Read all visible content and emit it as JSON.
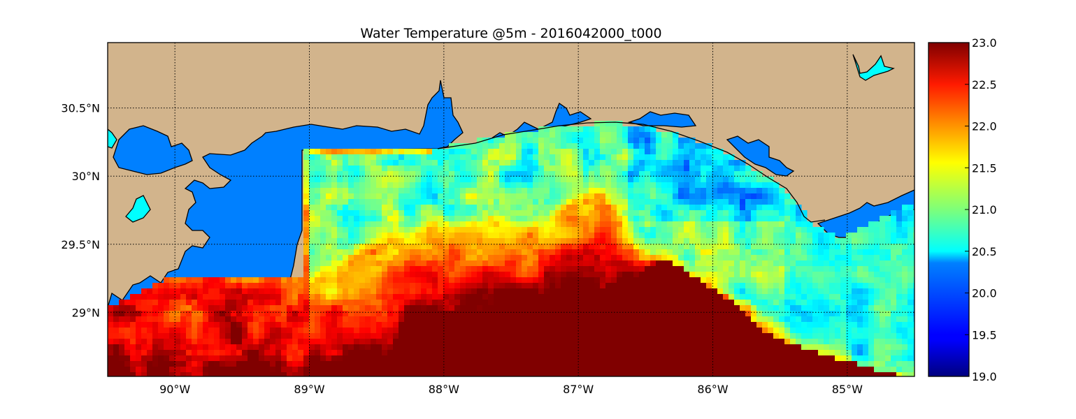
{
  "chart_data": {
    "type": "heatmap",
    "title": "Water Temperature @5m - 2016042000_t000",
    "xlim": [
      -90.5,
      -84.5
    ],
    "ylim": [
      28.53,
      30.98
    ],
    "xticks": [
      {
        "value": -90,
        "label": "90°W"
      },
      {
        "value": -89,
        "label": "89°W"
      },
      {
        "value": -88,
        "label": "88°W"
      },
      {
        "value": -87,
        "label": "87°W"
      },
      {
        "value": -86,
        "label": "86°W"
      },
      {
        "value": -85,
        "label": "85°W"
      }
    ],
    "yticks": [
      {
        "value": 29.0,
        "label": "29°N"
      },
      {
        "value": 29.5,
        "label": "29.5°N"
      },
      {
        "value": 30.0,
        "label": "30°N"
      },
      {
        "value": 30.5,
        "label": "30.5°N"
      }
    ],
    "grid": true,
    "colormap": "jet",
    "colorbar": {
      "min": 19.0,
      "max": 23.0,
      "ticks": [
        {
          "value": 19.0,
          "label": "19.0"
        },
        {
          "value": 19.5,
          "label": "19.5"
        },
        {
          "value": 20.0,
          "label": "20.0"
        },
        {
          "value": 20.5,
          "label": "20.5"
        },
        {
          "value": 21.0,
          "label": "21.0"
        },
        {
          "value": 21.5,
          "label": "21.5"
        },
        {
          "value": 22.0,
          "label": "22.0"
        },
        {
          "value": 22.5,
          "label": "22.5"
        },
        {
          "value": 23.0,
          "label": "23.0"
        }
      ]
    },
    "field_summary": {
      "nearshore_west_bays": 21.0,
      "mississippi_delta_plume": 22.3,
      "central_shelf": 20.8,
      "florida_panhandle_nearshore": 20.3,
      "offshore_deep": 23.0
    }
  },
  "colors": {
    "land": "#d2b48c",
    "inland_water": "#0080ff",
    "lake": "#00ffff",
    "coastline": "#000000",
    "grid": "#000000"
  }
}
